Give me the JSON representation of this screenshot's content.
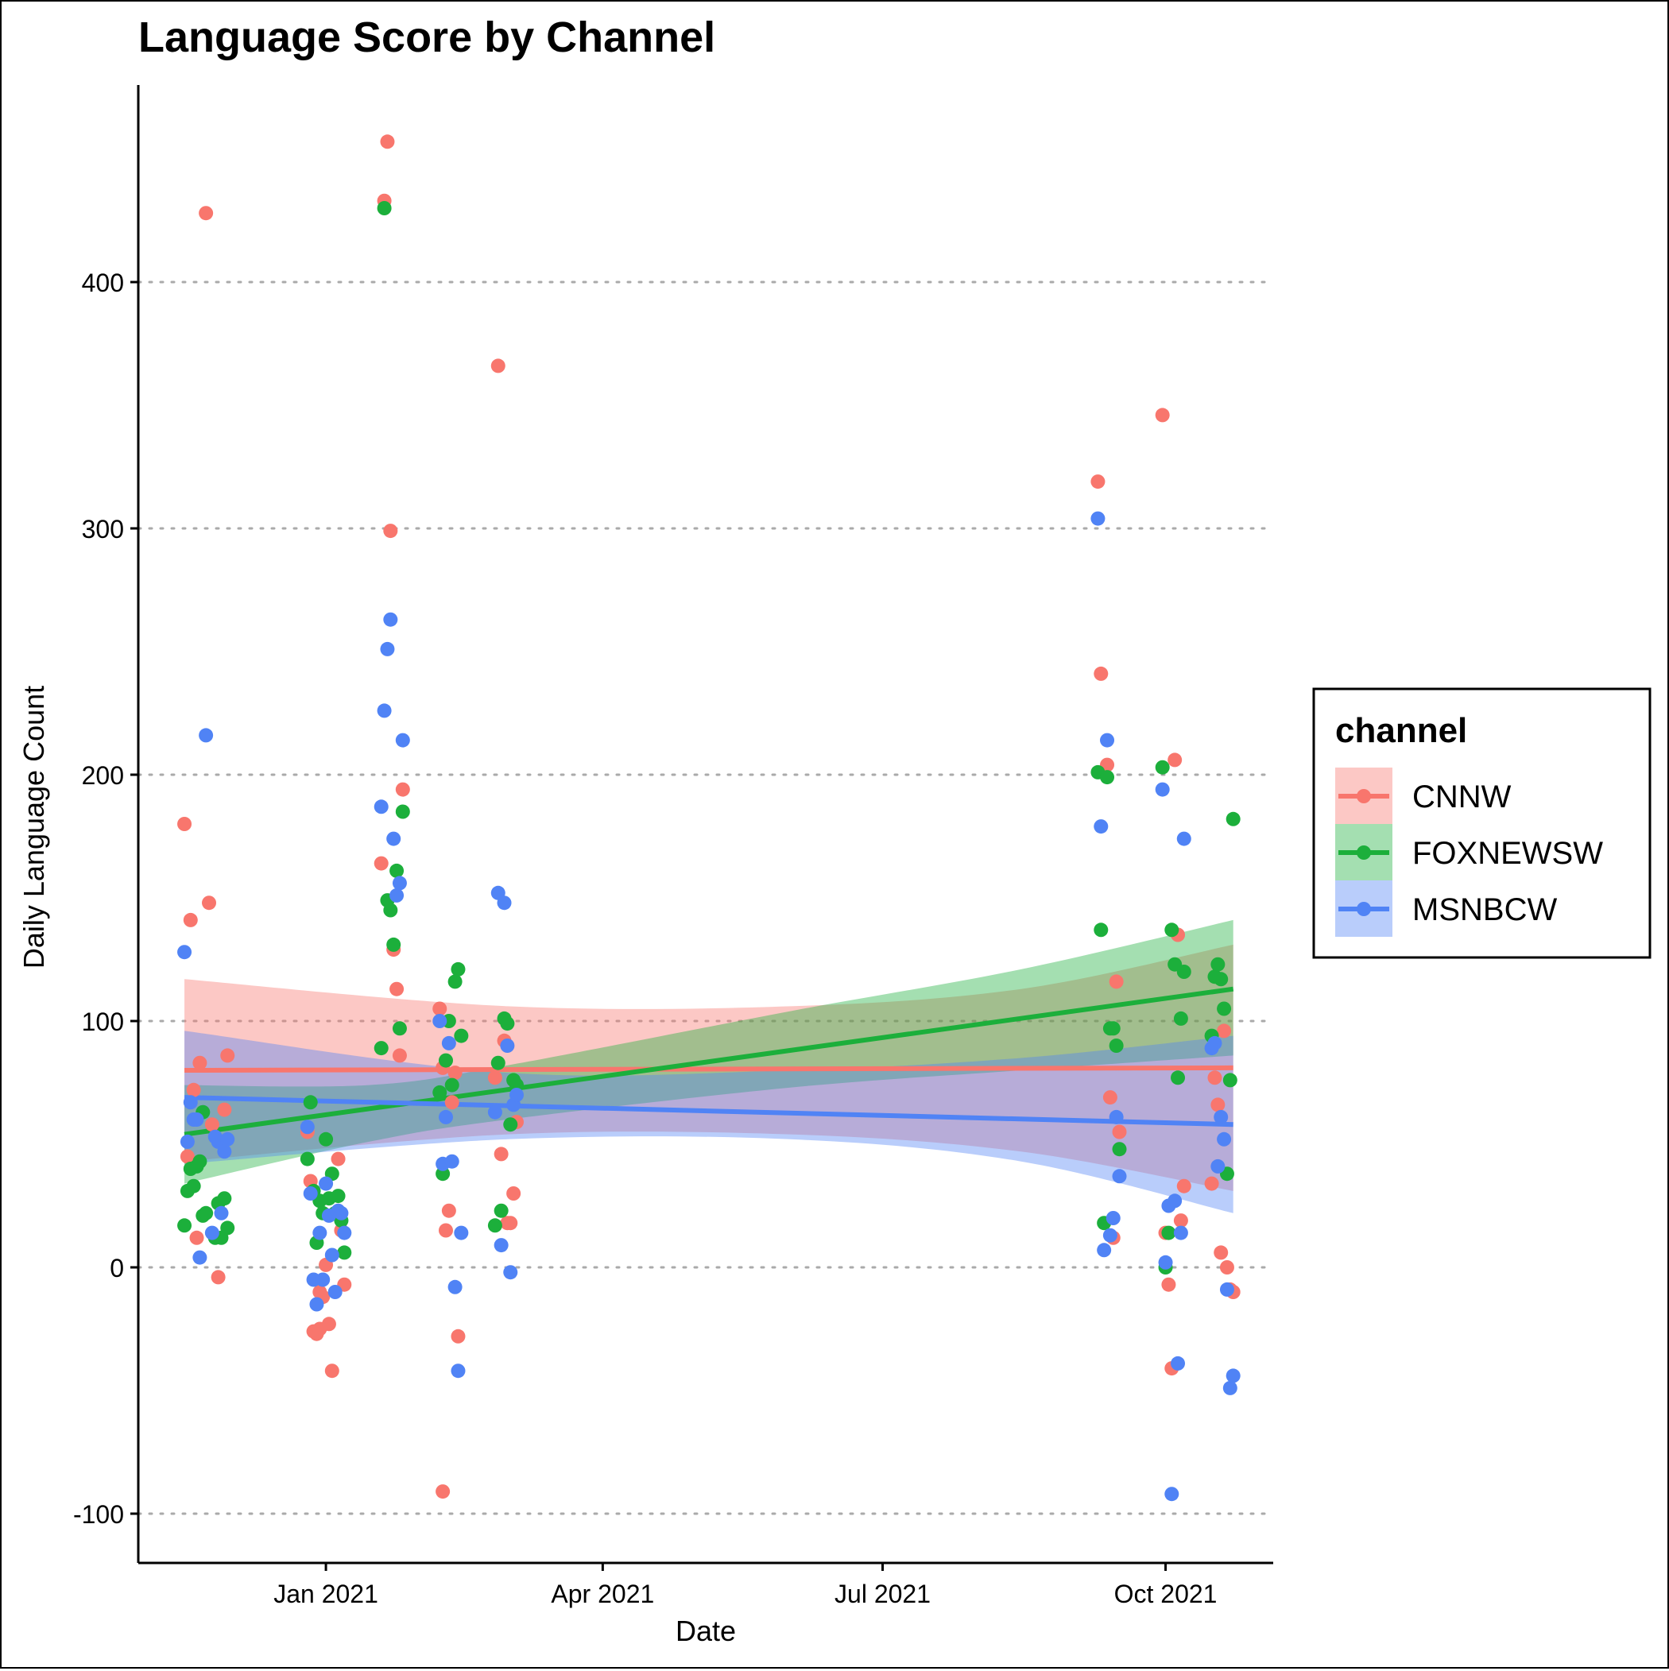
{
  "chart_data": {
    "type": "scatter",
    "title": "Language Score by Channel",
    "xlabel": "Date",
    "ylabel": "Daily Language Count",
    "x_type": "date",
    "xlim": [
      "2020-11-01",
      "2021-11-05"
    ],
    "ylim": [
      -120,
      480
    ],
    "x_ticks": [
      {
        "date": "2021-01-01",
        "label": "Jan 2021"
      },
      {
        "date": "2021-04-01",
        "label": "Apr 2021"
      },
      {
        "date": "2021-07-01",
        "label": "Jul 2021"
      },
      {
        "date": "2021-10-01",
        "label": "Oct 2021"
      }
    ],
    "y_ticks": [
      -100,
      0,
      100,
      200,
      300,
      400
    ],
    "grid": "horizontal dotted",
    "legend": {
      "title": "channel",
      "position": "right"
    },
    "series": [
      {
        "name": "CNNW",
        "color": "#F8766D",
        "points": [
          [
            "2020-11-16",
            180
          ],
          [
            "2020-11-17",
            45
          ],
          [
            "2020-11-18",
            141
          ],
          [
            "2020-11-19",
            72
          ],
          [
            "2020-11-20",
            12
          ],
          [
            "2020-11-21",
            83
          ],
          [
            "2020-11-23",
            428
          ],
          [
            "2020-11-24",
            148
          ],
          [
            "2020-11-25",
            58
          ],
          [
            "2020-11-27",
            -4
          ],
          [
            "2020-11-29",
            64
          ],
          [
            "2020-11-30",
            86
          ],
          [
            "2020-12-26",
            55
          ],
          [
            "2020-12-27",
            35
          ],
          [
            "2020-12-28",
            -26
          ],
          [
            "2020-12-29",
            -27
          ],
          [
            "2020-12-30",
            -25
          ],
          [
            "2020-12-30",
            -10
          ],
          [
            "2020-12-31",
            -12
          ],
          [
            "2021-01-01",
            1
          ],
          [
            "2021-01-02",
            -23
          ],
          [
            "2021-01-03",
            -42
          ],
          [
            "2021-01-05",
            44
          ],
          [
            "2021-01-06",
            15
          ],
          [
            "2021-01-07",
            -7
          ],
          [
            "2021-01-19",
            164
          ],
          [
            "2021-01-20",
            433
          ],
          [
            "2021-01-21",
            457
          ],
          [
            "2021-01-22",
            299
          ],
          [
            "2021-01-23",
            129
          ],
          [
            "2021-01-24",
            113
          ],
          [
            "2021-01-25",
            86
          ],
          [
            "2021-01-26",
            194
          ],
          [
            "2021-02-07",
            105
          ],
          [
            "2021-02-08",
            81
          ],
          [
            "2021-02-09",
            15
          ],
          [
            "2021-02-10",
            23
          ],
          [
            "2021-02-11",
            67
          ],
          [
            "2021-02-12",
            79
          ],
          [
            "2021-02-13",
            -28
          ],
          [
            "2021-02-08",
            -91
          ],
          [
            "2021-02-25",
            77
          ],
          [
            "2021-02-26",
            366
          ],
          [
            "2021-02-27",
            46
          ],
          [
            "2021-02-28",
            92
          ],
          [
            "2021-03-01",
            18
          ],
          [
            "2021-03-02",
            18
          ],
          [
            "2021-03-03",
            30
          ],
          [
            "2021-03-04",
            59
          ],
          [
            "2021-09-09",
            319
          ],
          [
            "2021-09-10",
            241
          ],
          [
            "2021-09-12",
            204
          ],
          [
            "2021-09-13",
            69
          ],
          [
            "2021-09-14",
            12
          ],
          [
            "2021-09-15",
            116
          ],
          [
            "2021-09-16",
            55
          ],
          [
            "2021-09-30",
            346
          ],
          [
            "2021-10-01",
            14
          ],
          [
            "2021-10-02",
            -7
          ],
          [
            "2021-10-03",
            -41
          ],
          [
            "2021-10-04",
            206
          ],
          [
            "2021-10-05",
            135
          ],
          [
            "2021-10-06",
            19
          ],
          [
            "2021-10-07",
            33
          ],
          [
            "2021-10-16",
            34
          ],
          [
            "2021-10-17",
            77
          ],
          [
            "2021-10-18",
            66
          ],
          [
            "2021-10-19",
            6
          ],
          [
            "2021-10-20",
            96
          ],
          [
            "2021-10-21",
            0
          ],
          [
            "2021-10-22",
            -9
          ],
          [
            "2021-10-23",
            -10
          ]
        ],
        "trend": {
          "start": [
            "2020-11-16",
            80
          ],
          "end": [
            "2021-10-23",
            81
          ]
        },
        "band_lower": [
          [
            "2020-11-16",
            43
          ],
          [
            "2021-03-01",
            54
          ],
          [
            "2021-06-01",
            54
          ],
          [
            "2021-08-15",
            47
          ],
          [
            "2021-10-23",
            31
          ]
        ],
        "band_upper": [
          [
            "2020-11-16",
            117
          ],
          [
            "2021-03-01",
            106
          ],
          [
            "2021-06-01",
            106
          ],
          [
            "2021-08-15",
            113
          ],
          [
            "2021-10-23",
            131
          ]
        ]
      },
      {
        "name": "FOXNEWSW",
        "color": "#1CAF3B",
        "points": [
          [
            "2020-11-16",
            17
          ],
          [
            "2020-11-17",
            31
          ],
          [
            "2020-11-18",
            40
          ],
          [
            "2020-11-19",
            33
          ],
          [
            "2020-11-20",
            41
          ],
          [
            "2020-11-21",
            43
          ],
          [
            "2020-11-22",
            21
          ],
          [
            "2020-11-23",
            22
          ],
          [
            "2020-11-22",
            63
          ],
          [
            "2020-11-26",
            12
          ],
          [
            "2020-11-27",
            26
          ],
          [
            "2020-11-28",
            12
          ],
          [
            "2020-11-29",
            28
          ],
          [
            "2020-11-30",
            16
          ],
          [
            "2020-12-26",
            44
          ],
          [
            "2020-12-27",
            67
          ],
          [
            "2020-12-28",
            31
          ],
          [
            "2020-12-29",
            10
          ],
          [
            "2020-12-30",
            27
          ],
          [
            "2020-12-31",
            22
          ],
          [
            "2021-01-01",
            52
          ],
          [
            "2021-01-02",
            28
          ],
          [
            "2021-01-03",
            38
          ],
          [
            "2021-01-04",
            22
          ],
          [
            "2021-01-05",
            29
          ],
          [
            "2021-01-06",
            19
          ],
          [
            "2021-01-07",
            6
          ],
          [
            "2021-01-19",
            89
          ],
          [
            "2021-01-20",
            430
          ],
          [
            "2021-01-21",
            149
          ],
          [
            "2021-01-22",
            145
          ],
          [
            "2021-01-23",
            131
          ],
          [
            "2021-01-24",
            161
          ],
          [
            "2021-01-25",
            97
          ],
          [
            "2021-01-26",
            185
          ],
          [
            "2021-02-07",
            71
          ],
          [
            "2021-02-08",
            38
          ],
          [
            "2021-02-09",
            84
          ],
          [
            "2021-02-10",
            100
          ],
          [
            "2021-02-11",
            74
          ],
          [
            "2021-02-12",
            116
          ],
          [
            "2021-02-13",
            121
          ],
          [
            "2021-02-14",
            94
          ],
          [
            "2021-02-25",
            17
          ],
          [
            "2021-02-26",
            83
          ],
          [
            "2021-02-27",
            23
          ],
          [
            "2021-02-28",
            101
          ],
          [
            "2021-03-01",
            99
          ],
          [
            "2021-03-02",
            58
          ],
          [
            "2021-03-03",
            76
          ],
          [
            "2021-03-04",
            74
          ],
          [
            "2021-09-09",
            201
          ],
          [
            "2021-09-10",
            137
          ],
          [
            "2021-09-11",
            18
          ],
          [
            "2021-09-12",
            199
          ],
          [
            "2021-09-13",
            97
          ],
          [
            "2021-09-14",
            97
          ],
          [
            "2021-09-15",
            90
          ],
          [
            "2021-09-16",
            48
          ],
          [
            "2021-09-30",
            203
          ],
          [
            "2021-10-01",
            0
          ],
          [
            "2021-10-02",
            14
          ],
          [
            "2021-10-03",
            137
          ],
          [
            "2021-10-04",
            123
          ],
          [
            "2021-10-05",
            77
          ],
          [
            "2021-10-06",
            101
          ],
          [
            "2021-10-07",
            120
          ],
          [
            "2021-10-16",
            94
          ],
          [
            "2021-10-17",
            118
          ],
          [
            "2021-10-18",
            123
          ],
          [
            "2021-10-19",
            117
          ],
          [
            "2021-10-20",
            105
          ],
          [
            "2021-10-21",
            38
          ],
          [
            "2021-10-22",
            76
          ],
          [
            "2021-10-23",
            182
          ]
        ],
        "trend": {
          "start": [
            "2020-11-16",
            54
          ],
          "end": [
            "2021-10-23",
            113
          ]
        },
        "band_lower": [
          [
            "2020-11-16",
            34
          ],
          [
            "2021-01-15",
            51
          ],
          [
            "2021-03-01",
            60
          ],
          [
            "2021-06-01",
            73
          ],
          [
            "2021-08-15",
            80
          ],
          [
            "2021-10-23",
            86
          ]
        ],
        "band_upper": [
          [
            "2020-11-16",
            74
          ],
          [
            "2021-01-15",
            74
          ],
          [
            "2021-03-01",
            82
          ],
          [
            "2021-06-01",
            104
          ],
          [
            "2021-08-15",
            121
          ],
          [
            "2021-10-23",
            141
          ]
        ]
      },
      {
        "name": "MSNBCW",
        "color": "#5083F5",
        "points": [
          [
            "2020-11-16",
            128
          ],
          [
            "2020-11-17",
            51
          ],
          [
            "2020-11-18",
            67
          ],
          [
            "2020-11-19",
            60
          ],
          [
            "2020-11-20",
            60
          ],
          [
            "2020-11-21",
            4
          ],
          [
            "2020-11-23",
            216
          ],
          [
            "2020-11-25",
            14
          ],
          [
            "2020-11-26",
            53
          ],
          [
            "2020-11-27",
            51
          ],
          [
            "2020-11-28",
            22
          ],
          [
            "2020-11-29",
            47
          ],
          [
            "2020-11-30",
            52
          ],
          [
            "2020-12-26",
            57
          ],
          [
            "2020-12-27",
            30
          ],
          [
            "2020-12-28",
            -5
          ],
          [
            "2020-12-29",
            -15
          ],
          [
            "2020-12-30",
            14
          ],
          [
            "2020-12-31",
            -5
          ],
          [
            "2021-01-01",
            34
          ],
          [
            "2021-01-02",
            21
          ],
          [
            "2021-01-03",
            5
          ],
          [
            "2021-01-04",
            -10
          ],
          [
            "2021-01-05",
            23
          ],
          [
            "2021-01-06",
            22
          ],
          [
            "2021-01-07",
            14
          ],
          [
            "2021-01-19",
            187
          ],
          [
            "2021-01-20",
            226
          ],
          [
            "2021-01-21",
            251
          ],
          [
            "2021-01-22",
            263
          ],
          [
            "2021-01-23",
            174
          ],
          [
            "2021-01-24",
            151
          ],
          [
            "2021-01-25",
            156
          ],
          [
            "2021-01-26",
            214
          ],
          [
            "2021-02-07",
            100
          ],
          [
            "2021-02-08",
            42
          ],
          [
            "2021-02-09",
            61
          ],
          [
            "2021-02-10",
            91
          ],
          [
            "2021-02-11",
            43
          ],
          [
            "2021-02-12",
            -8
          ],
          [
            "2021-02-13",
            -42
          ],
          [
            "2021-02-14",
            14
          ],
          [
            "2021-02-25",
            63
          ],
          [
            "2021-02-26",
            152
          ],
          [
            "2021-02-27",
            9
          ],
          [
            "2021-02-28",
            148
          ],
          [
            "2021-03-01",
            90
          ],
          [
            "2021-03-02",
            -2
          ],
          [
            "2021-03-03",
            66
          ],
          [
            "2021-03-04",
            70
          ],
          [
            "2021-09-09",
            304
          ],
          [
            "2021-09-10",
            179
          ],
          [
            "2021-09-11",
            7
          ],
          [
            "2021-09-12",
            214
          ],
          [
            "2021-09-13",
            13
          ],
          [
            "2021-09-14",
            20
          ],
          [
            "2021-09-15",
            61
          ],
          [
            "2021-09-16",
            37
          ],
          [
            "2021-09-30",
            194
          ],
          [
            "2021-10-01",
            2
          ],
          [
            "2021-10-02",
            25
          ],
          [
            "2021-10-03",
            -92
          ],
          [
            "2021-10-04",
            27
          ],
          [
            "2021-10-05",
            -39
          ],
          [
            "2021-10-06",
            14
          ],
          [
            "2021-10-07",
            174
          ],
          [
            "2021-10-16",
            89
          ],
          [
            "2021-10-17",
            91
          ],
          [
            "2021-10-18",
            41
          ],
          [
            "2021-10-19",
            61
          ],
          [
            "2021-10-20",
            52
          ],
          [
            "2021-10-21",
            -9
          ],
          [
            "2021-10-22",
            -49
          ],
          [
            "2021-10-23",
            -44
          ]
        ],
        "trend": {
          "start": [
            "2020-11-16",
            69
          ],
          "end": [
            "2021-10-23",
            58
          ]
        },
        "band_lower": [
          [
            "2020-11-16",
            42
          ],
          [
            "2021-03-01",
            52
          ],
          [
            "2021-06-01",
            52
          ],
          [
            "2021-08-15",
            43
          ],
          [
            "2021-10-23",
            22
          ]
        ],
        "band_upper": [
          [
            "2020-11-16",
            96
          ],
          [
            "2021-03-01",
            79
          ],
          [
            "2021-06-01",
            80
          ],
          [
            "2021-08-15",
            85
          ],
          [
            "2021-10-23",
            94
          ]
        ]
      }
    ]
  }
}
